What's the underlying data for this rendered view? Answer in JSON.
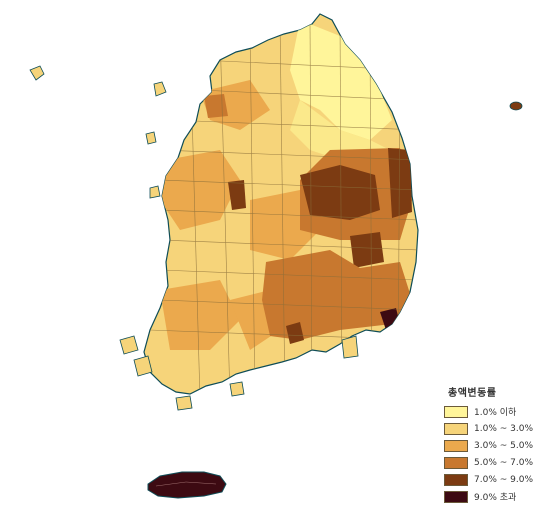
{
  "legend": {
    "title": "총액변동률",
    "items": [
      {
        "label": "1.0% 이하",
        "color": "#fff59a"
      },
      {
        "label": "1.0% ~ 3.0%",
        "color": "#f6d47a"
      },
      {
        "label": "3.0% ~ 5.0%",
        "color": "#eba94d"
      },
      {
        "label": "5.0% ~ 7.0%",
        "color": "#c8782f"
      },
      {
        "label": "7.0% ~ 9.0%",
        "color": "#7c3b12"
      },
      {
        "label": "9.0% 초과",
        "color": "#3d0a12"
      }
    ]
  },
  "colors": {
    "border": "#8a6e3a",
    "coast": "#0f4d57"
  }
}
